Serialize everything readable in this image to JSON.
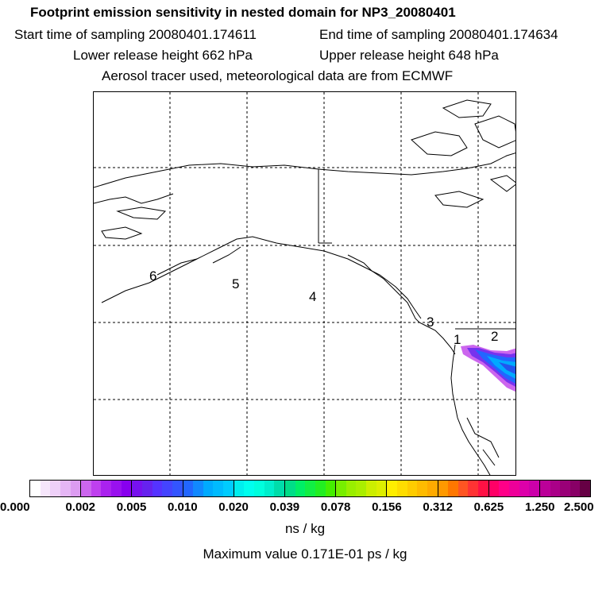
{
  "title": {
    "line1": "Footprint emission sensitivity in nested domain for NP3_20080401",
    "start": "Start time of sampling 20080401.174611",
    "end": "End time of sampling 20080401.174634",
    "lower": "Lower release height  662 hPa",
    "upper": "Upper release height  648 hPa",
    "line4": "Aerosol tracer used, meteorological data are from ECMWF"
  },
  "map": {
    "point_labels": [
      "6",
      "5",
      "4",
      "3",
      "2",
      "1"
    ],
    "colors": {
      "coastline": "#000000",
      "grid": "#000000"
    }
  },
  "colorbar": {
    "ticks": [
      "0.000",
      "0.002",
      "0.005",
      "0.010",
      "0.020",
      "0.039",
      "0.078",
      "0.156",
      "0.312",
      "0.625",
      "1.250",
      "2.500"
    ],
    "segments": [
      [
        "#ffffff",
        "#f6e6fb",
        "#eed0f8",
        "#e5b6f5",
        "#dc9cf1"
      ],
      [
        "#cc66ee",
        "#bf40ee",
        "#aa22ee",
        "#9911ee",
        "#8800ee"
      ],
      [
        "#7711ee",
        "#6622ee",
        "#5533ff",
        "#4444ff",
        "#3355ff"
      ],
      [
        "#2266ff",
        "#1188ff",
        "#00aaff",
        "#00bbff",
        "#00ccff"
      ],
      [
        "#00eeee",
        "#00ffee",
        "#00ffdd",
        "#00eecc",
        "#00ddaa"
      ],
      [
        "#00dd88",
        "#00ee66",
        "#11ee44",
        "#22ee22",
        "#44ee00"
      ],
      [
        "#77ee00",
        "#99ee00",
        "#aaee00",
        "#ccee00",
        "#ddee00"
      ],
      [
        "#ffee00",
        "#ffdd00",
        "#ffcc00",
        "#ffbb00",
        "#ffaa00"
      ],
      [
        "#ff9900",
        "#ff7700",
        "#ff5522",
        "#ff3333",
        "#ff1144"
      ],
      [
        "#ff0066",
        "#ff0088",
        "#ee0099",
        "#dd00aa",
        "#cc00aa"
      ],
      [
        "#bb0099",
        "#aa0088",
        "#990077",
        "#880066",
        "#660044"
      ]
    ],
    "unit": "ns / kg",
    "max_label": "Maximum value  0.171E-01 ps / kg"
  }
}
